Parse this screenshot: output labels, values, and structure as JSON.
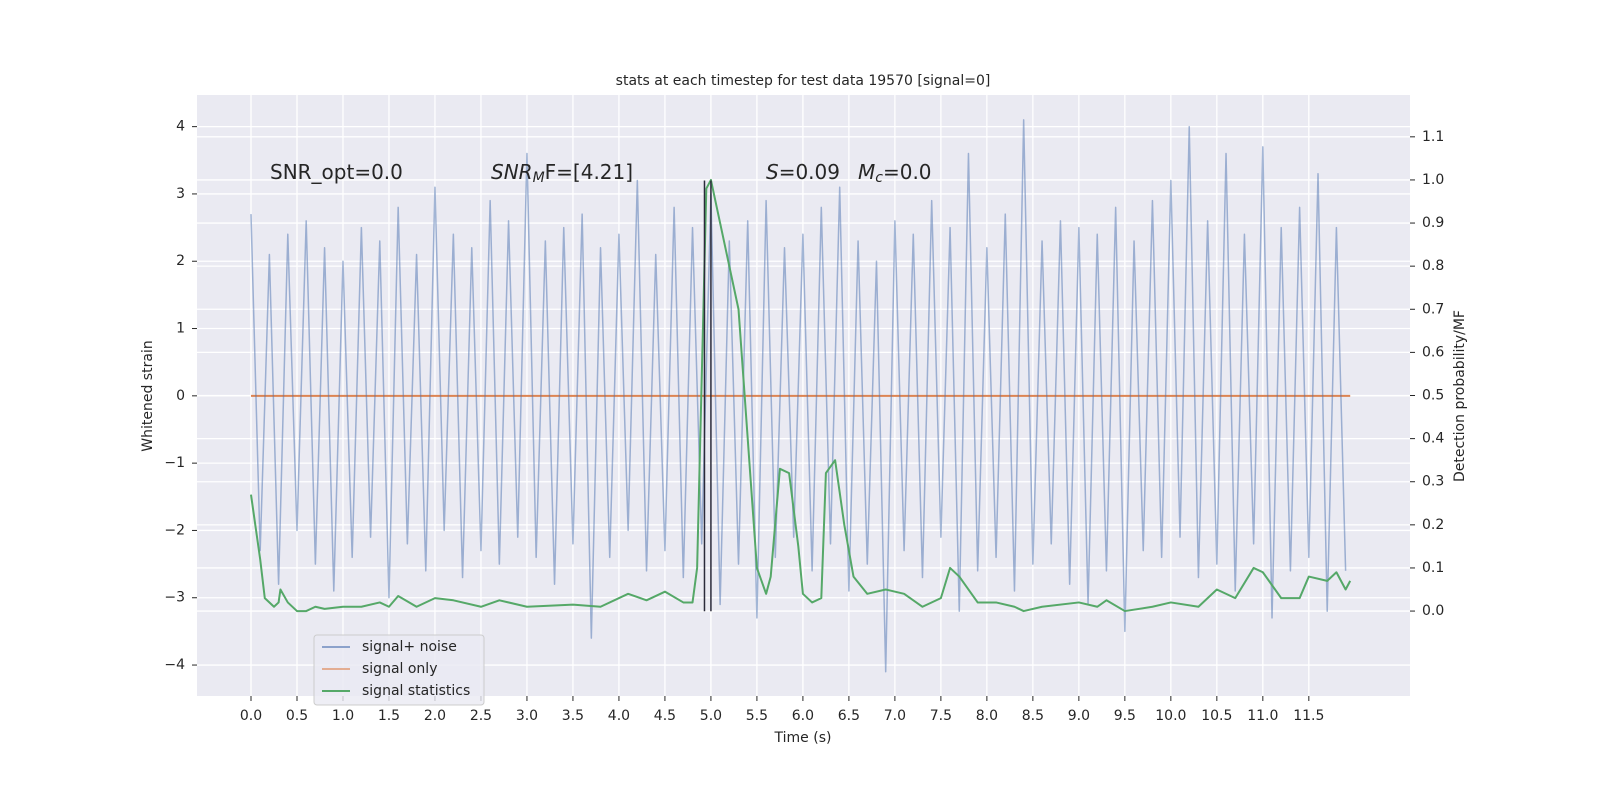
{
  "chart_data": {
    "type": "line",
    "title": "stats at each timestep for test data 19570 [signal=0]",
    "xlabel": "Time (s)",
    "ylabel": "Whitened strain",
    "y2label": "Detection probability/MF",
    "grid": true,
    "legend": "lower left",
    "xlim": [
      -0.587,
      12.6
    ],
    "ylim": [
      -4.46,
      4.47
    ],
    "y2lim": [
      -0.197,
      1.197
    ],
    "xticks": [
      {
        "value": 0.0,
        "label": "0.0"
      },
      0.5,
      {
        "value": 1.0,
        "label": "1.0"
      },
      1.5,
      {
        "value": 2.0,
        "label": "2.0"
      },
      2.5,
      {
        "value": 3.0,
        "label": "3.0"
      },
      3.5,
      {
        "value": 4.0,
        "label": "4.0"
      },
      4.5,
      {
        "value": 5.0,
        "label": "5.0"
      },
      5.5,
      {
        "value": 6.0,
        "label": "6.0"
      },
      6.5,
      {
        "value": 7.0,
        "label": "7.0"
      },
      7.5,
      {
        "value": 8.0,
        "label": "8.0"
      },
      8.5,
      {
        "value": 9.0,
        "label": "9.0"
      },
      9.5,
      {
        "value": 10.0,
        "label": "10.0"
      },
      10.5,
      {
        "value": 11.0,
        "label": "11.0"
      },
      11.5
    ],
    "yticks": [
      {
        "value": -4,
        "label": "−4"
      },
      {
        "value": -3,
        "label": "−3"
      },
      {
        "value": -2,
        "label": "−2"
      },
      {
        "value": -1,
        "label": "−1"
      },
      0,
      1,
      2,
      3,
      4
    ],
    "y2ticks": [
      {
        "value": 0.0,
        "label": "0.0"
      },
      0.1,
      0.2,
      0.3,
      0.4,
      0.5,
      0.6,
      0.7,
      0.8,
      0.9,
      {
        "value": 1.0,
        "label": "1.0"
      },
      1.1
    ],
    "annotations": [
      [
        "SNR_opt=0.0"
      ],
      [
        "SNR",
        "M",
        "F=[4.21]"
      ],
      [
        "S",
        "=0.09"
      ],
      [
        "M",
        "c",
        "=0.0"
      ]
    ],
    "vlines": [
      4.93,
      5.0
    ],
    "vline_range": [
      -3.2,
      3.2
    ],
    "vline_color": "#2a2a3a",
    "series": [
      {
        "name": "signal+ noise",
        "color": "#4c72b0",
        "x": [
          0.0,
          0.1,
          0.2,
          0.3,
          0.4,
          0.5,
          0.6,
          0.7,
          0.8,
          0.9,
          1.0,
          1.1,
          1.2,
          1.3,
          1.4,
          1.5,
          1.6,
          1.7,
          1.8,
          1.9,
          2.0,
          2.1,
          2.2,
          2.3,
          2.4,
          2.5,
          2.6,
          2.7,
          2.8,
          2.9,
          3.0,
          3.1,
          3.2,
          3.3,
          3.4,
          3.5,
          3.6,
          3.7,
          3.8,
          3.9,
          4.0,
          4.1,
          4.2,
          4.3,
          4.4,
          4.5,
          4.6,
          4.7,
          4.8,
          4.9,
          5.0,
          5.1,
          5.2,
          5.3,
          5.4,
          5.5,
          5.6,
          5.7,
          5.8,
          5.9,
          6.0,
          6.1,
          6.2,
          6.3,
          6.4,
          6.5,
          6.6,
          6.7,
          6.8,
          6.9,
          7.0,
          7.1,
          7.2,
          7.3,
          7.4,
          7.5,
          7.6,
          7.7,
          7.8,
          7.9,
          8.0,
          8.1,
          8.2,
          8.3,
          8.4,
          8.5,
          8.6,
          8.7,
          8.8,
          8.9,
          9.0,
          9.1,
          9.2,
          9.3,
          9.4,
          9.5,
          9.6,
          9.7,
          9.8,
          9.9,
          10.0,
          10.1,
          10.2,
          10.3,
          10.4,
          10.5,
          10.6,
          10.7,
          10.8,
          10.9,
          11.0,
          11.1,
          11.2,
          11.3,
          11.4,
          11.5,
          11.6,
          11.7,
          11.8,
          11.9
        ],
        "values": [
          2.7,
          -2.3,
          2.1,
          -2.8,
          2.4,
          -2.0,
          2.6,
          -2.5,
          2.2,
          -2.9,
          2.0,
          -2.4,
          2.5,
          -2.1,
          2.3,
          -3.0,
          2.8,
          -2.2,
          2.1,
          -2.6,
          3.1,
          -2.0,
          2.4,
          -2.7,
          2.2,
          -2.3,
          2.9,
          -2.5,
          2.6,
          -2.1,
          3.6,
          -2.4,
          2.3,
          -2.8,
          2.5,
          -2.2,
          2.7,
          -3.6,
          2.2,
          -2.4,
          2.4,
          -2.0,
          3.2,
          -2.6,
          2.1,
          -2.3,
          2.8,
          -2.7,
          2.5,
          -2.2,
          3.0,
          -3.1,
          2.3,
          -2.5,
          2.6,
          -3.3,
          2.9,
          -2.4,
          2.2,
          -2.1,
          2.4,
          -2.6,
          2.8,
          -2.2,
          3.1,
          -2.9,
          2.3,
          -2.5,
          2.0,
          -4.1,
          2.6,
          -2.3,
          2.4,
          -2.7,
          2.9,
          -2.1,
          2.5,
          -3.2,
          3.6,
          -2.6,
          2.2,
          -2.4,
          2.7,
          -2.9,
          4.1,
          -2.5,
          2.3,
          -2.2,
          2.6,
          -2.8,
          2.5,
          -3.1,
          2.4,
          -2.6,
          2.8,
          -3.5,
          2.3,
          -2.3,
          2.9,
          -2.4,
          3.2,
          -2.1,
          4.0,
          -2.7,
          2.6,
          -2.5,
          3.6,
          -2.9,
          2.4,
          -2.2,
          3.7,
          -3.3,
          2.5,
          -2.6,
          2.8,
          -2.4,
          3.3,
          -3.2,
          2.5,
          -2.6
        ]
      },
      {
        "name": "signal only",
        "color": "#dd8452",
        "x": [
          0.0,
          11.95
        ],
        "values": [
          0,
          0
        ]
      },
      {
        "name": "signal statistics",
        "color": "#55a868",
        "axis": "y2",
        "x": [
          0.0,
          0.1,
          0.15,
          0.25,
          0.3,
          0.32,
          0.4,
          0.5,
          0.6,
          0.7,
          0.8,
          1.0,
          1.2,
          1.4,
          1.5,
          1.6,
          1.8,
          2.0,
          2.2,
          2.5,
          2.7,
          3.0,
          3.5,
          3.8,
          4.1,
          4.3,
          4.5,
          4.7,
          4.8,
          4.85,
          4.95,
          5.0,
          5.1,
          5.2,
          5.3,
          5.4,
          5.5,
          5.6,
          5.65,
          5.75,
          5.85,
          5.95,
          6.0,
          6.1,
          6.2,
          6.25,
          6.35,
          6.45,
          6.55,
          6.7,
          6.9,
          7.1,
          7.3,
          7.5,
          7.6,
          7.7,
          7.9,
          8.1,
          8.3,
          8.4,
          8.6,
          9.0,
          9.2,
          9.3,
          9.5,
          9.8,
          10.0,
          10.3,
          10.5,
          10.7,
          10.9,
          11.0,
          11.2,
          11.4,
          11.5,
          11.7,
          11.8,
          11.9,
          11.95
        ],
        "values": [
          0.27,
          0.12,
          0.03,
          0.01,
          0.02,
          0.05,
          0.02,
          0.0,
          0.0,
          0.01,
          0.005,
          0.01,
          0.01,
          0.02,
          0.01,
          0.035,
          0.01,
          0.03,
          0.025,
          0.01,
          0.025,
          0.01,
          0.015,
          0.01,
          0.04,
          0.025,
          0.045,
          0.02,
          0.02,
          0.1,
          0.98,
          1.0,
          0.9,
          0.8,
          0.7,
          0.4,
          0.1,
          0.04,
          0.08,
          0.33,
          0.32,
          0.15,
          0.04,
          0.02,
          0.03,
          0.32,
          0.35,
          0.2,
          0.08,
          0.04,
          0.05,
          0.04,
          0.01,
          0.03,
          0.1,
          0.08,
          0.02,
          0.02,
          0.01,
          0.0,
          0.01,
          0.02,
          0.01,
          0.025,
          0.0,
          0.01,
          0.02,
          0.01,
          0.05,
          0.03,
          0.1,
          0.09,
          0.03,
          0.03,
          0.08,
          0.07,
          0.09,
          0.05,
          0.07
        ]
      }
    ]
  }
}
